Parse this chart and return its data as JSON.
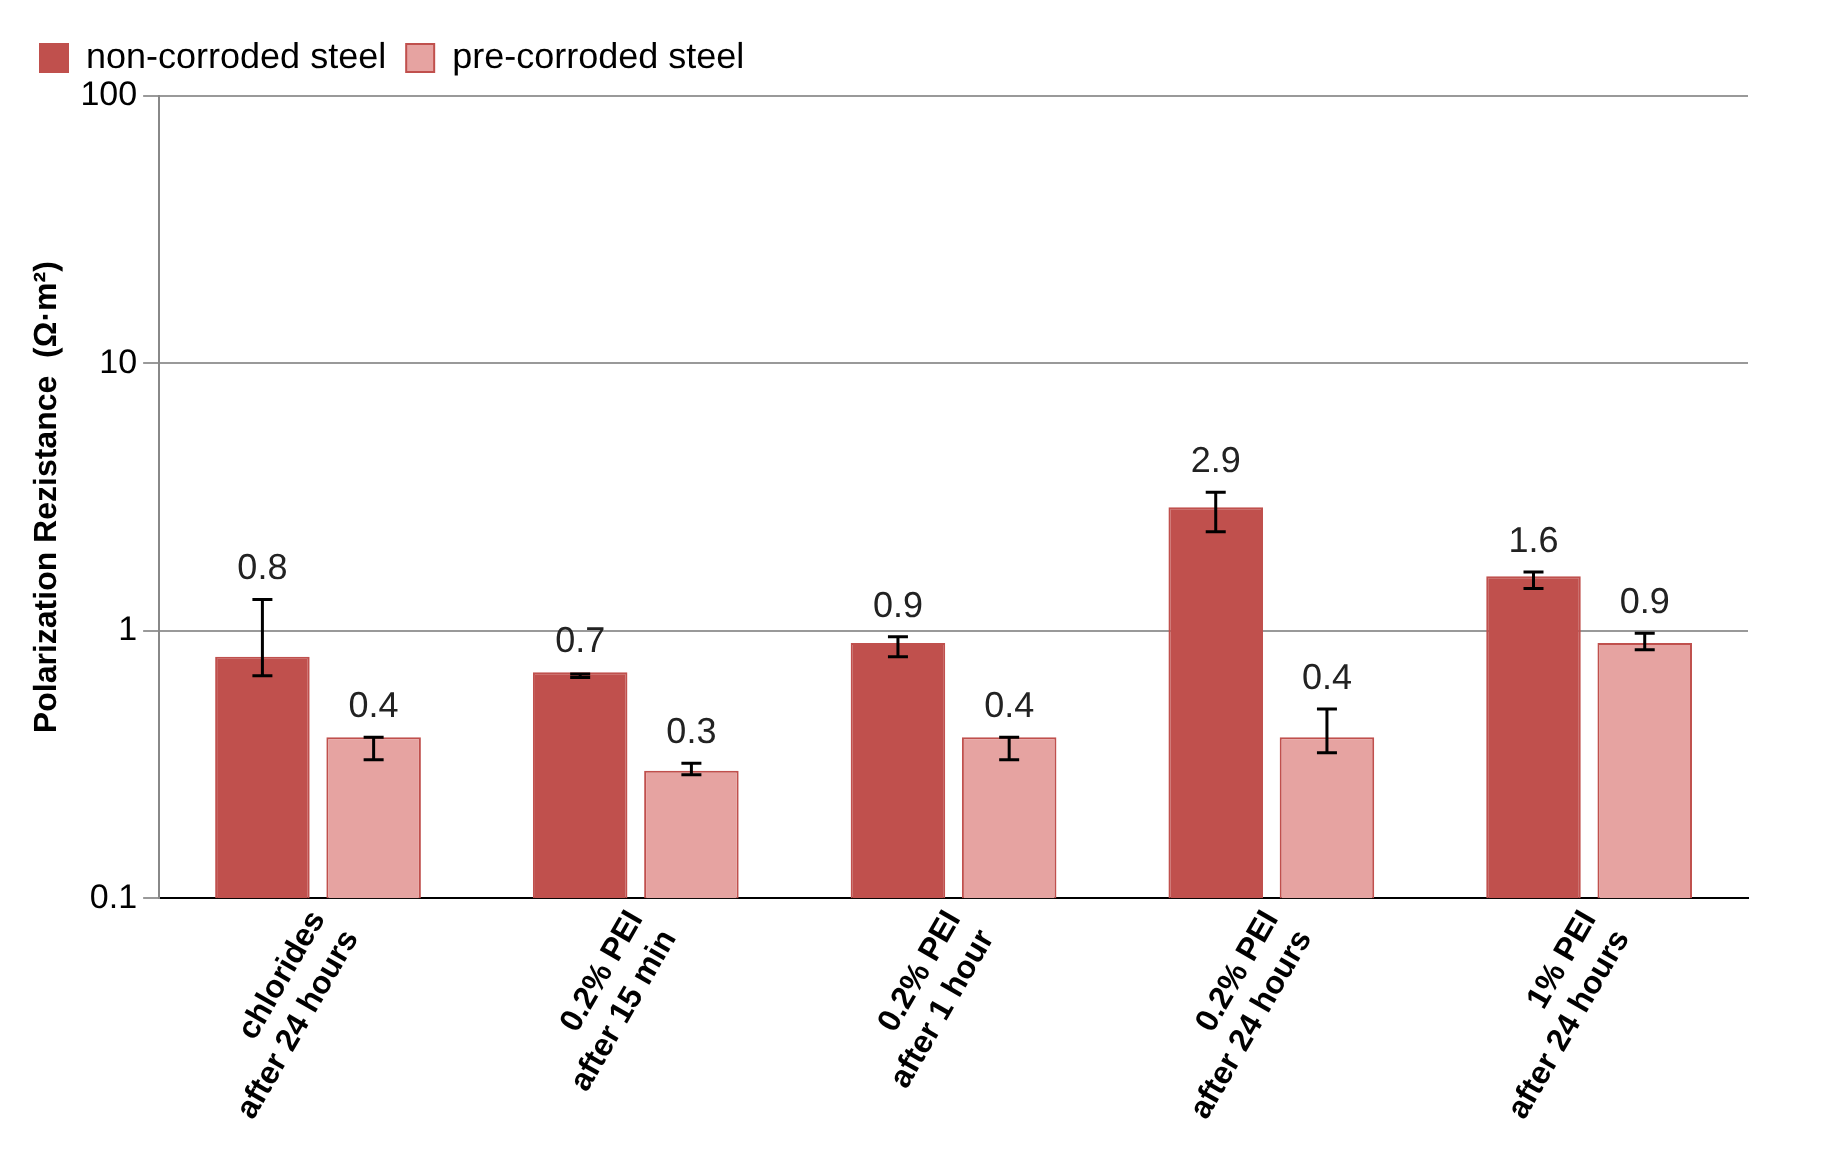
{
  "chart_data": {
    "type": "bar",
    "ylabel": "Polarization Rezistance  (Ω·m²)",
    "categories": [
      "chlorides\nafter 24 hours",
      "0.2% PEI\nafter 15 min",
      "0.2% PEI\nafter 1 hour",
      "0.2% PEI\nafter 24 hours",
      "1% PEI\nafter 24 hours"
    ],
    "series": [
      {
        "name": "non-corroded steel",
        "color": "#c0504d",
        "values": [
          0.8,
          0.7,
          0.9,
          2.9,
          1.6
        ],
        "errors": [
          [
            0.68,
            1.31
          ],
          [
            0.67,
            0.69
          ],
          [
            0.8,
            0.95
          ],
          [
            2.35,
            3.3
          ],
          [
            1.44,
            1.66
          ]
        ]
      },
      {
        "name": "pre-corroded steel",
        "color": "#e6a3a1",
        "values": [
          0.4,
          0.3,
          0.4,
          0.4,
          0.9
        ],
        "errors": [
          [
            0.33,
            0.4
          ],
          [
            0.29,
            0.32
          ],
          [
            0.33,
            0.4
          ],
          [
            0.35,
            0.51
          ],
          [
            0.85,
            0.98
          ]
        ]
      }
    ],
    "log": true,
    "ylim": [
      0.1,
      100
    ],
    "yticks": [
      0.1,
      1,
      10,
      100
    ],
    "grid": "y",
    "legend": "top left",
    "data_labels": true
  }
}
